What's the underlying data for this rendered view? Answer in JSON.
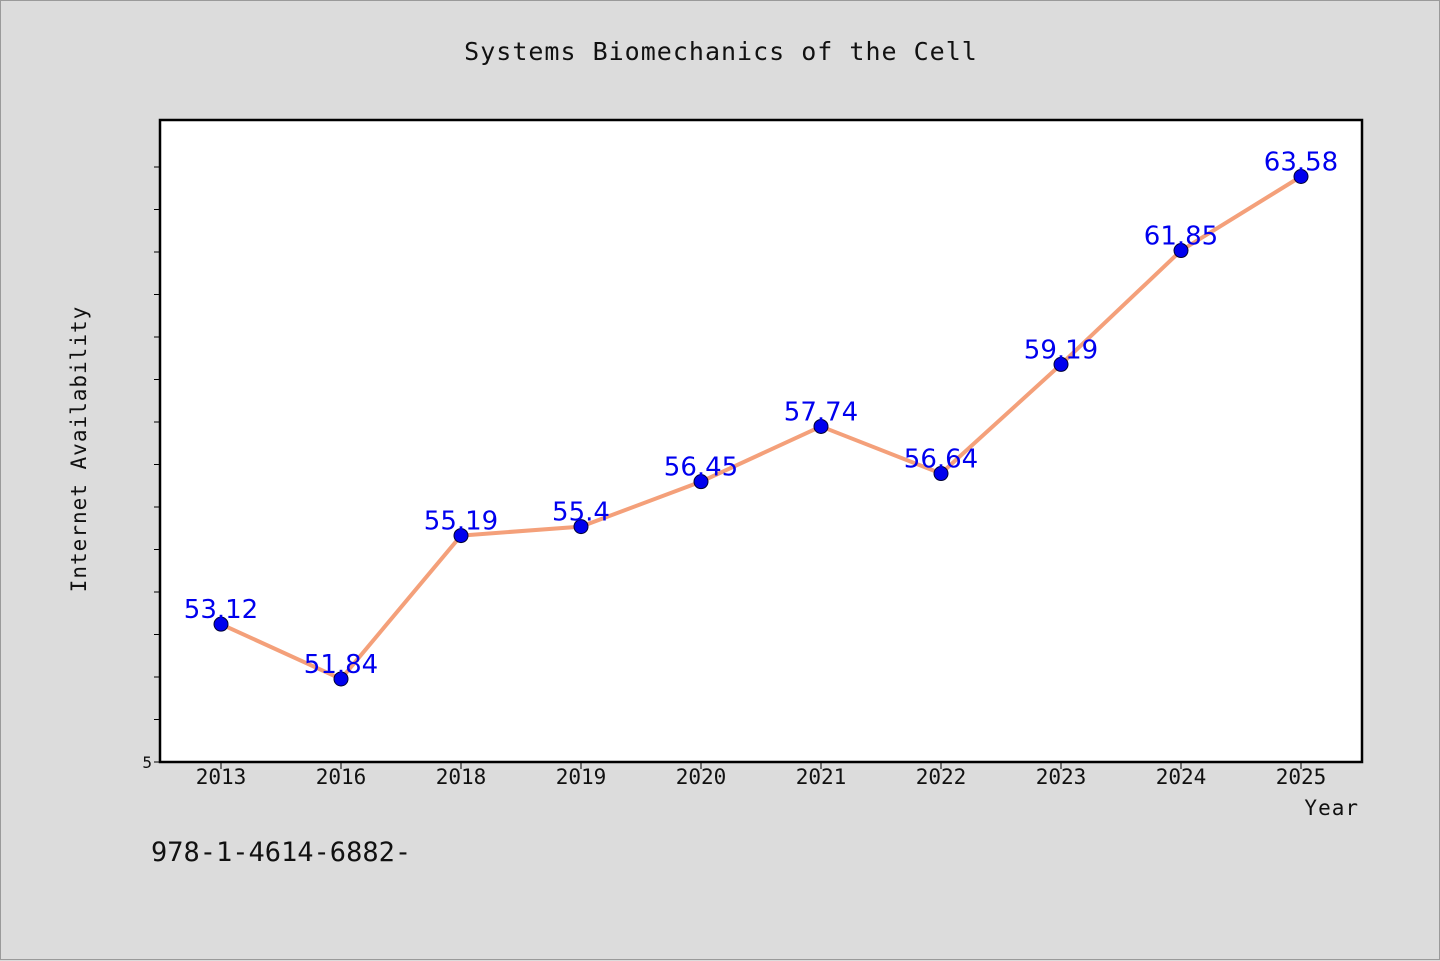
{
  "chart_data": {
    "type": "line",
    "title": "Systems Biomechanics of the Cell",
    "xlabel": "Year",
    "ylabel": "Internet Availability",
    "categories": [
      "2013",
      "2016",
      "2018",
      "2019",
      "2020",
      "2021",
      "2022",
      "2023",
      "2024",
      "2025"
    ],
    "series": [
      {
        "values": [
          53.12,
          51.84,
          55.19,
          55.4,
          56.45,
          57.74,
          56.64,
          59.19,
          61.85,
          63.58
        ],
        "labels": [
          "53.12",
          "51.84",
          "55.19",
          "55.4",
          "56.45",
          "57.74",
          "56.64",
          "59.19",
          "61.85",
          "63.58"
        ],
        "line_color": "#f4a07a",
        "marker_color": "#0000ee",
        "label_color": "#0000ee"
      }
    ],
    "y_tick_labels": [
      "5"
    ],
    "ylim": [
      49.9,
      64.9
    ],
    "grid": false
  },
  "footer": {
    "identifier": "978-1-4614-6882-"
  }
}
